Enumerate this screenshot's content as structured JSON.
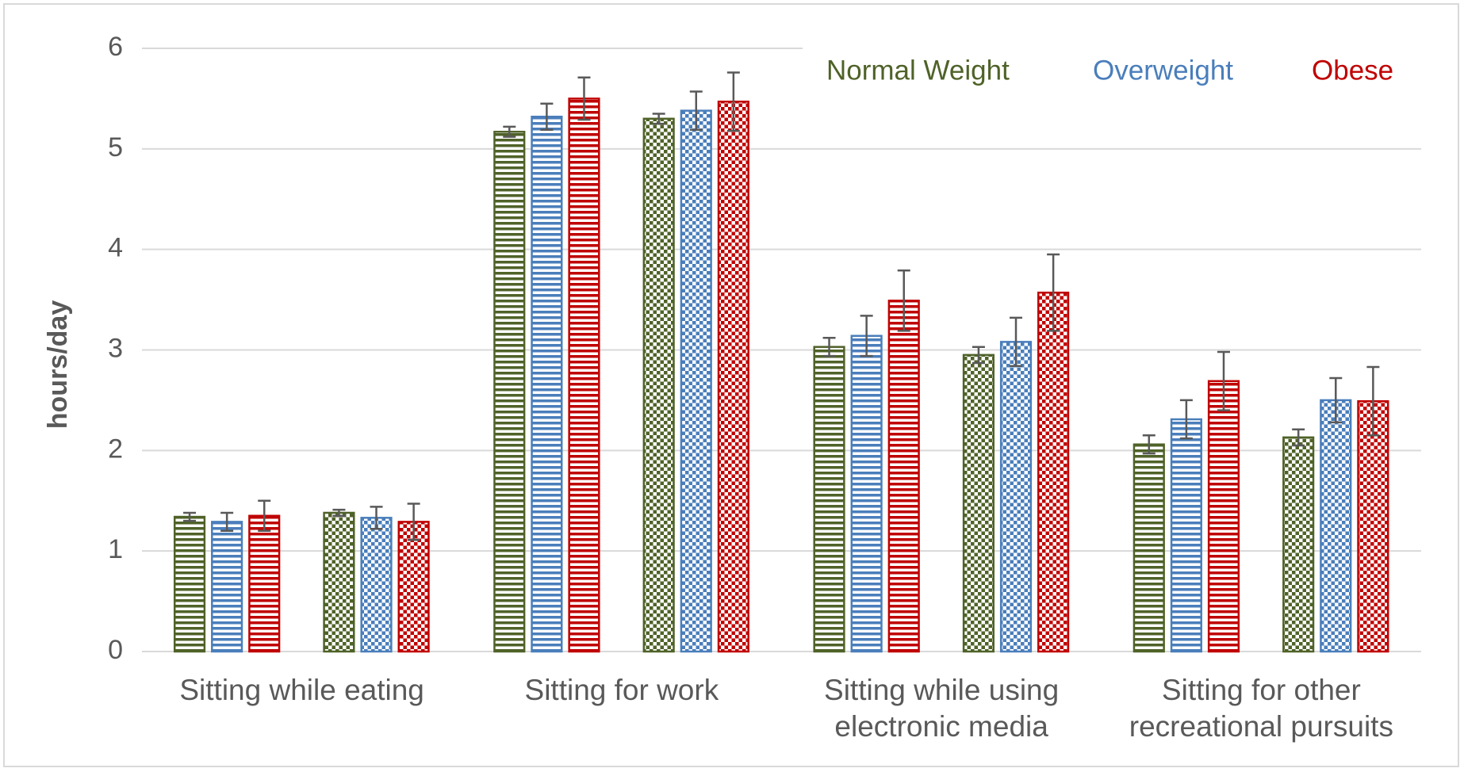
{
  "chart_data": {
    "type": "bar",
    "y_label": "hours/day",
    "categories": [
      [
        "Sitting while eating"
      ],
      [
        "Sitting for work"
      ],
      [
        "Sitting while using",
        "electronic media"
      ],
      [
        "Sitting for other",
        "recreational pursuits"
      ]
    ],
    "ylim": [
      0,
      6
    ],
    "yticks": [
      0,
      1,
      2,
      3,
      4,
      5,
      6
    ],
    "grid": true,
    "legend": "top-right",
    "series": [
      {
        "name": "Normal Weight",
        "color": "#4f6228",
        "subseries": [
          {
            "pattern": "stripes",
            "values": [
              1.34,
              5.17,
              3.03,
              2.06
            ],
            "errors": [
              0.04,
              0.05,
              0.09,
              0.09
            ]
          },
          {
            "pattern": "checks",
            "values": [
              1.38,
              5.3,
              2.95,
              2.13
            ],
            "errors": [
              0.03,
              0.05,
              0.08,
              0.08
            ]
          }
        ]
      },
      {
        "name": "Overweight",
        "color": "#4a7ebb",
        "subseries": [
          {
            "pattern": "stripes",
            "values": [
              1.29,
              5.32,
              3.14,
              2.31
            ],
            "errors": [
              0.09,
              0.13,
              0.2,
              0.19
            ]
          },
          {
            "pattern": "checks",
            "values": [
              1.33,
              5.38,
              3.08,
              2.5
            ],
            "errors": [
              0.11,
              0.19,
              0.24,
              0.22
            ]
          }
        ]
      },
      {
        "name": "Obese",
        "color": "#c00000",
        "subseries": [
          {
            "pattern": "stripes",
            "values": [
              1.35,
              5.5,
              3.49,
              2.69
            ],
            "errors": [
              0.15,
              0.21,
              0.3,
              0.29
            ]
          },
          {
            "pattern": "checks",
            "values": [
              1.29,
              5.47,
              3.57,
              2.49
            ],
            "errors": [
              0.18,
              0.29,
              0.38,
              0.34
            ]
          }
        ]
      }
    ]
  }
}
